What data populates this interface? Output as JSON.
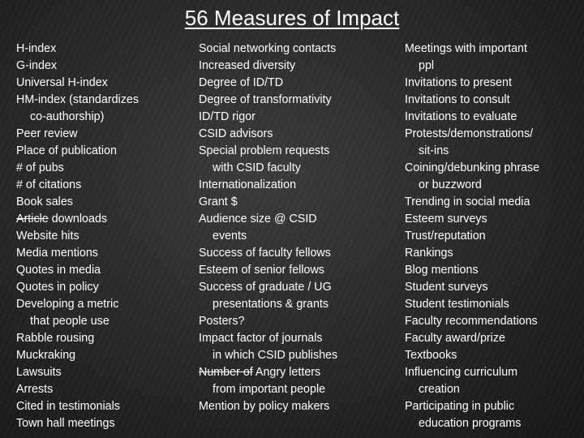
{
  "slide": {
    "title": "56 Measures of Impact",
    "col1": [
      "H-index",
      "G-index",
      "Universal H-index",
      "HM-index (standardizes",
      "co-authorship)",
      "Peer review",
      "Place of publication",
      "# of pubs",
      "# of citations",
      "Book sales",
      {
        "strike": "Article",
        "rest": " downloads"
      },
      "Website hits",
      "Media mentions",
      "Quotes in media",
      "Quotes in policy",
      "Developing a metric",
      "that people use",
      "Rabble rousing",
      "Muckraking",
      "Lawsuits",
      "Arrests",
      "Cited in testimonials",
      "Town hall meetings"
    ],
    "col2": [
      "Social networking contacts",
      "Increased diversity",
      "Degree of ID/TD",
      "Degree of transformativity",
      "ID/TD rigor",
      "CSID advisors",
      "Special problem requests",
      "with CSID faculty",
      "Internationalization",
      "Grant $",
      "Audience size @ CSID",
      "events",
      "Success of faculty fellows",
      "Esteem of senior fellows",
      "Success of graduate / UG",
      "presentations & grants",
      "Posters?",
      "Impact factor of journals",
      "in which CSID publishes",
      {
        "strike": "Number of",
        "rest": " Angry letters"
      },
      "from important people",
      "Mention by policy makers"
    ],
    "col3": [
      "Meetings with important",
      "ppl",
      "Invitations to present",
      "Invitations to consult",
      "Invitations to evaluate",
      "Protests/demonstrations/",
      "sit-ins",
      "Coining/debunking phrase",
      "or buzzword",
      "Trending in social media",
      "Esteem surveys",
      "Trust/reputation",
      "Rankings",
      "Blog mentions",
      "Student surveys",
      "Student testimonials",
      "Faculty recommendations",
      "Faculty award/prize",
      "Textbooks",
      "Influencing curriculum",
      "creation",
      "Participating in public",
      "education programs"
    ]
  }
}
